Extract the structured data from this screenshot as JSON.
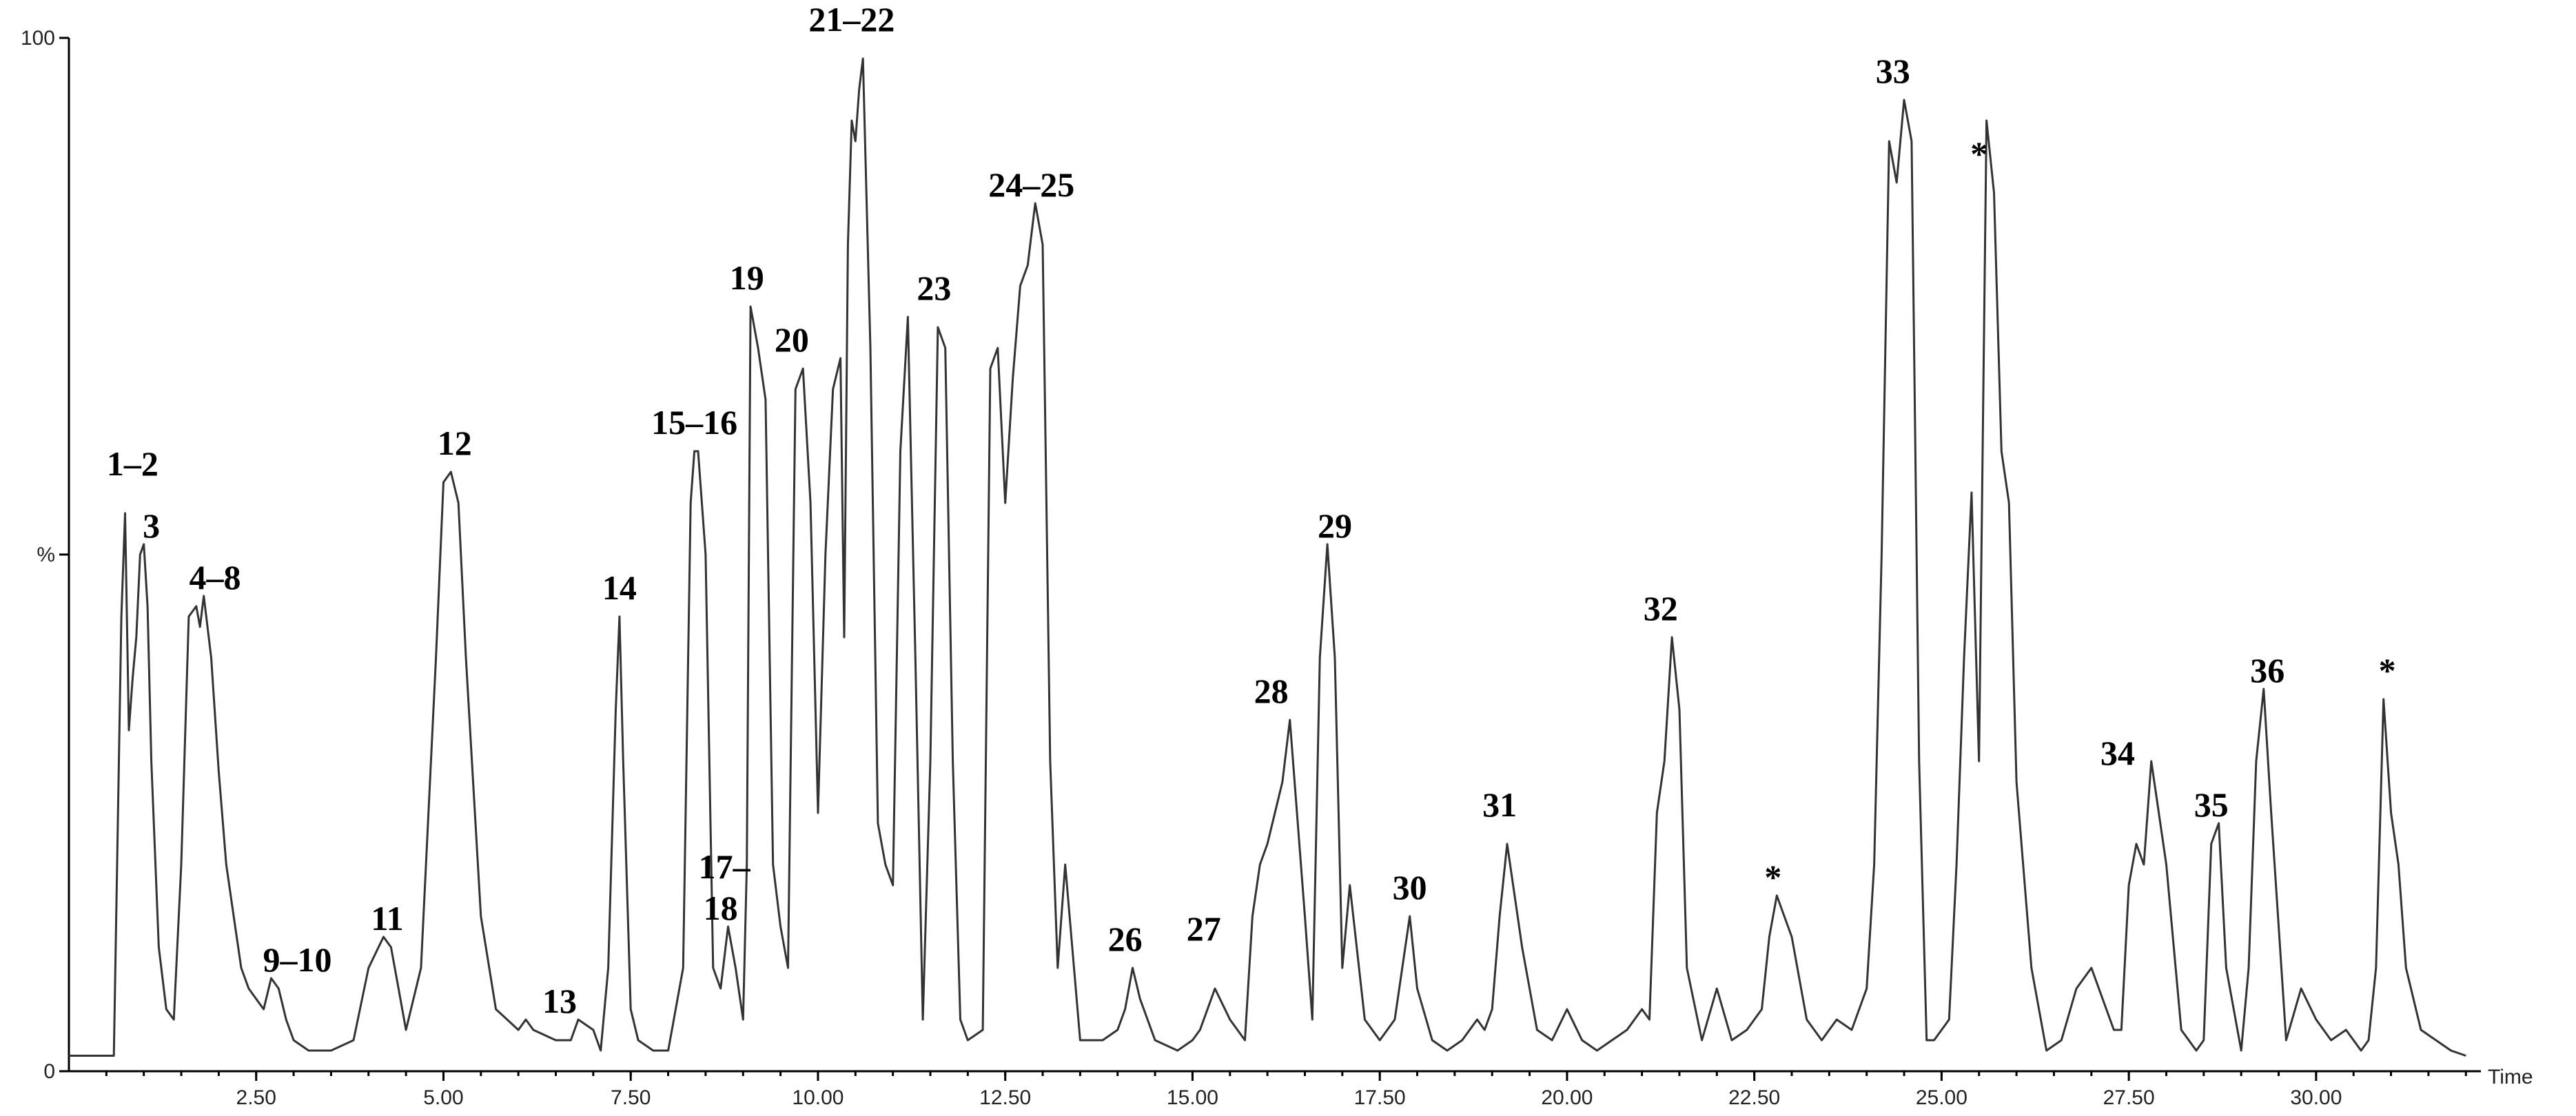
{
  "chart_data": {
    "type": "line",
    "xlabel": "Time",
    "ylabel": "%",
    "xlim": [
      0,
      32.2
    ],
    "ylim": [
      0,
      100
    ],
    "x_ticks": [
      2.5,
      5.0,
      7.5,
      10.0,
      12.5,
      15.0,
      17.5,
      20.0,
      22.5,
      25.0,
      27.5,
      30.0
    ],
    "x_tick_labels": [
      "2.50",
      "5.00",
      "7.50",
      "10.00",
      "12.50",
      "15.00",
      "17.50",
      "20.00",
      "22.50",
      "25.00",
      "27.50",
      "30.00"
    ],
    "y_ticks": [
      0,
      50,
      100
    ],
    "y_tick_labels": [
      "0",
      "%",
      "100"
    ],
    "grid": false,
    "series": [
      {
        "x": [
          0.0,
          0.6,
          0.7,
          0.75,
          0.8,
          0.85,
          0.9,
          0.95,
          1.0,
          1.05,
          1.1,
          1.2,
          1.3,
          1.4,
          1.5,
          1.6,
          1.7,
          1.75,
          1.8,
          1.9,
          2.0,
          2.1,
          2.2,
          2.3,
          2.4,
          2.5,
          2.6,
          2.7,
          2.8,
          2.9,
          3.0,
          3.2,
          3.5,
          3.8,
          4.0,
          4.2,
          4.3,
          4.4,
          4.5,
          4.7,
          4.9,
          5.0,
          5.1,
          5.2,
          5.3,
          5.5,
          5.7,
          6.0,
          6.1,
          6.2,
          6.5,
          6.7,
          6.8,
          7.0,
          7.1,
          7.2,
          7.3,
          7.35,
          7.4,
          7.5,
          7.6,
          7.8,
          8.0,
          8.2,
          8.3,
          8.35,
          8.4,
          8.5,
          8.6,
          8.7,
          8.8,
          8.9,
          9.0,
          9.05,
          9.1,
          9.2,
          9.3,
          9.4,
          9.5,
          9.6,
          9.7,
          9.8,
          9.9,
          10.0,
          10.1,
          10.2,
          10.3,
          10.35,
          10.4,
          10.45,
          10.5,
          10.55,
          10.6,
          10.7,
          10.8,
          10.9,
          11.0,
          11.1,
          11.2,
          11.3,
          11.4,
          11.5,
          11.6,
          11.7,
          11.8,
          11.9,
          12.0,
          12.2,
          12.3,
          12.4,
          12.5,
          12.6,
          12.7,
          12.8,
          12.9,
          13.0,
          13.1,
          13.2,
          13.3,
          13.5,
          13.8,
          14.0,
          14.1,
          14.2,
          14.3,
          14.5,
          14.8,
          15.0,
          15.1,
          15.2,
          15.3,
          15.5,
          15.7,
          15.8,
          15.9,
          16.0,
          16.1,
          16.2,
          16.3,
          16.5,
          16.6,
          16.7,
          16.8,
          16.9,
          17.0,
          17.1,
          17.3,
          17.5,
          17.7,
          17.8,
          17.9,
          18.0,
          18.2,
          18.4,
          18.6,
          18.8,
          18.9,
          19.0,
          19.1,
          19.2,
          19.4,
          19.6,
          19.8,
          20.0,
          20.2,
          20.4,
          20.6,
          20.8,
          21.0,
          21.1,
          21.2,
          21.3,
          21.4,
          21.5,
          21.6,
          21.8,
          22.0,
          22.2,
          22.4,
          22.6,
          22.7,
          22.8,
          23.0,
          23.2,
          23.4,
          23.6,
          23.8,
          24.0,
          24.1,
          24.2,
          24.3,
          24.4,
          24.5,
          24.6,
          24.7,
          24.8,
          24.9,
          25.0,
          25.1,
          25.2,
          25.3,
          25.4,
          25.5,
          25.6,
          25.7,
          25.8,
          25.9,
          26.0,
          26.2,
          26.4,
          26.6,
          26.8,
          27.0,
          27.2,
          27.3,
          27.4,
          27.5,
          27.6,
          27.7,
          27.8,
          28.0,
          28.2,
          28.4,
          28.5,
          28.6,
          28.7,
          28.8,
          29.0,
          29.1,
          29.2,
          29.3,
          29.4,
          29.6,
          29.8,
          30.0,
          30.2,
          30.4,
          30.6,
          30.7,
          30.8,
          30.9,
          31.0,
          31.1,
          31.2,
          31.4,
          31.6,
          31.8,
          32.0
        ],
        "y": [
          1.5,
          1.5,
          44,
          54,
          33,
          38,
          42,
          50,
          51,
          45,
          30,
          12,
          6,
          5,
          20,
          44,
          45,
          43,
          46,
          40,
          29,
          20,
          15,
          10,
          8,
          7,
          6,
          9,
          8,
          5,
          3,
          2,
          2,
          3,
          10,
          13,
          12,
          8,
          4,
          10,
          40,
          57,
          58,
          55,
          40,
          15,
          6,
          4,
          5,
          4,
          3,
          3,
          5,
          4,
          2,
          10,
          35,
          44,
          30,
          6,
          3,
          2,
          2,
          10,
          55,
          60,
          60,
          50,
          10,
          8,
          14,
          10,
          5,
          20,
          74,
          70,
          65,
          20,
          14,
          10,
          66,
          68,
          55,
          25,
          50,
          66,
          69,
          42,
          80,
          92,
          90,
          95,
          98,
          70,
          24,
          20,
          18,
          60,
          73,
          40,
          5,
          30,
          72,
          70,
          30,
          5,
          3,
          4,
          68,
          70,
          55,
          67,
          76,
          78,
          84,
          80,
          30,
          10,
          20,
          3,
          3,
          4,
          6,
          10,
          7,
          3,
          2,
          3,
          4,
          6,
          8,
          5,
          3,
          15,
          20,
          22,
          25,
          28,
          34,
          15,
          5,
          40,
          51,
          40,
          10,
          18,
          5,
          3,
          5,
          10,
          15,
          8,
          3,
          2,
          3,
          5,
          4,
          6,
          15,
          22,
          12,
          4,
          3,
          6,
          3,
          2,
          3,
          4,
          6,
          5,
          25,
          30,
          42,
          35,
          10,
          3,
          8,
          3,
          4,
          6,
          13,
          17,
          13,
          5,
          3,
          5,
          4,
          8,
          20,
          50,
          90,
          86,
          94,
          90,
          30,
          3,
          3,
          4,
          5,
          20,
          40,
          56,
          30,
          92,
          85,
          60,
          55,
          28,
          10,
          2,
          3,
          8,
          10,
          6,
          4,
          4,
          18,
          22,
          20,
          30,
          20,
          4,
          2,
          3,
          22,
          24,
          10,
          2,
          10,
          30,
          37,
          25,
          3,
          8,
          5,
          3,
          4,
          2,
          3,
          10,
          36,
          25,
          20,
          10,
          4,
          3,
          2,
          1.5
        ]
      }
    ],
    "annotations": [
      {
        "text": "1–2",
        "x": 0.85,
        "y": 57
      },
      {
        "text": "3",
        "x": 1.1,
        "y": 51
      },
      {
        "text": "4–8",
        "x": 1.95,
        "y": 46
      },
      {
        "text": "9–10",
        "x": 3.05,
        "y": 9
      },
      {
        "text": "11",
        "x": 4.25,
        "y": 13
      },
      {
        "text": "12",
        "x": 5.15,
        "y": 59
      },
      {
        "text": "13",
        "x": 6.55,
        "y": 5
      },
      {
        "text": "14",
        "x": 7.35,
        "y": 45
      },
      {
        "text": "15–16",
        "x": 8.35,
        "y": 61
      },
      {
        "text": "17–",
        "x": 8.75,
        "y": 18
      },
      {
        "text": "18",
        "x": 8.7,
        "y": 14
      },
      {
        "text": "19",
        "x": 9.05,
        "y": 75
      },
      {
        "text": "20",
        "x": 9.65,
        "y": 69
      },
      {
        "text": "21–22",
        "x": 10.45,
        "y": 100
      },
      {
        "text": "23",
        "x": 11.55,
        "y": 74
      },
      {
        "text": "24–25",
        "x": 12.85,
        "y": 84
      },
      {
        "text": "26",
        "x": 14.1,
        "y": 11
      },
      {
        "text": "27",
        "x": 15.15,
        "y": 12
      },
      {
        "text": "28",
        "x": 16.05,
        "y": 35
      },
      {
        "text": "29",
        "x": 16.9,
        "y": 51
      },
      {
        "text": "30",
        "x": 17.9,
        "y": 16
      },
      {
        "text": "31",
        "x": 19.1,
        "y": 24
      },
      {
        "text": "32",
        "x": 21.25,
        "y": 43
      },
      {
        "text": "*",
        "x": 22.75,
        "y": 17
      },
      {
        "text": "33",
        "x": 24.35,
        "y": 95
      },
      {
        "text": "*",
        "x": 25.5,
        "y": 87
      },
      {
        "text": "34",
        "x": 27.35,
        "y": 29
      },
      {
        "text": "35",
        "x": 28.6,
        "y": 24
      },
      {
        "text": "36",
        "x": 29.35,
        "y": 37
      },
      {
        "text": "*",
        "x": 30.95,
        "y": 37
      }
    ]
  }
}
